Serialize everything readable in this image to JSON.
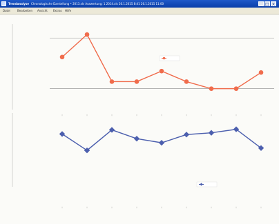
{
  "window": {
    "title_app": "Trendanalyse",
    "title_info": "Chronologische Darstellung • 2013.xls     Auswertung: 1.2014.xls     26.1.2015 8:41     26.1.2015 11:00",
    "minimize_symbol": "_",
    "maximize_symbol": "□",
    "close_symbol": "×"
  },
  "menu": {
    "items": [
      "Datei",
      "Bearbeiten",
      "Ansicht",
      "Extras",
      "Hilfe"
    ]
  },
  "colors": {
    "top_series": "#f06c4c",
    "bottom_series": "#4c5fae",
    "grid": "#999999",
    "axis": "#777777"
  },
  "chart_data": [
    {
      "type": "line",
      "title": "",
      "x": [
        1,
        2,
        3,
        4,
        5,
        6,
        7,
        8,
        9
      ],
      "xlabel": "",
      "ylabel": "",
      "ylim": [
        0,
        100
      ],
      "series": [
        {
          "name": "",
          "values": [
            63,
            95,
            28,
            28,
            43,
            28,
            18,
            18,
            41
          ]
        }
      ],
      "reference_lines": [
        90,
        18
      ],
      "y_tick_labels": [
        "",
        ""
      ],
      "legend_placement": "upper-right"
    },
    {
      "type": "line",
      "title": "",
      "x": [
        1,
        2,
        3,
        4,
        5,
        6,
        7,
        8,
        9
      ],
      "xlabel": "",
      "ylabel": "",
      "ylim": [
        0,
        100
      ],
      "series": [
        {
          "name": "",
          "values": [
            76,
            48,
            83,
            68,
            61,
            75,
            78,
            84,
            52
          ]
        }
      ],
      "y_tick_labels": [
        "",
        "",
        ""
      ],
      "legend_placement": "lower-right"
    }
  ]
}
